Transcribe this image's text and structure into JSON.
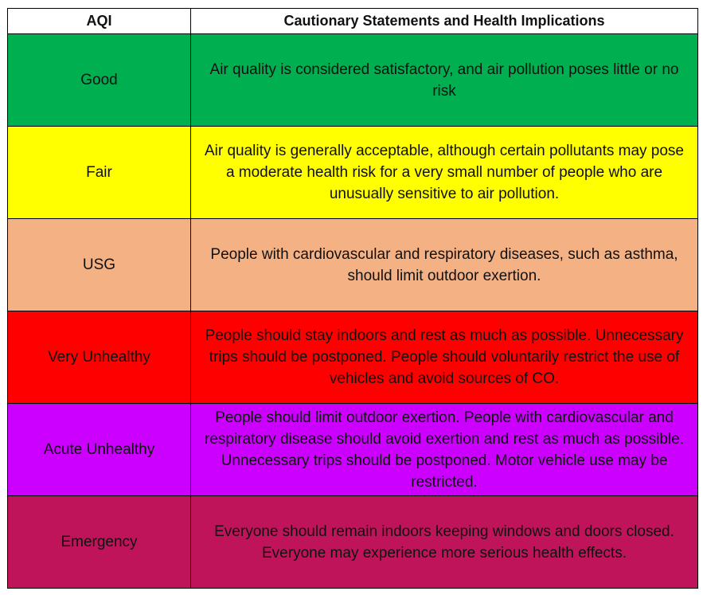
{
  "table": {
    "headers": [
      "AQI",
      "Cautionary Statements and Health Implications"
    ],
    "rows": [
      {
        "level": "Good",
        "statement": "Air quality is considered satisfactory, and air pollution poses little or no risk",
        "color": "#00b050"
      },
      {
        "level": "Fair",
        "statement": "Air quality is generally acceptable, although certain pollutants may pose a moderate health risk for a very small number of people who are unusually sensitive to air pollution.",
        "color": "#ffff00"
      },
      {
        "level": "USG",
        "statement": "People with cardiovascular and respiratory diseases, such as asthma, should limit outdoor exertion.",
        "color": "#f4b183"
      },
      {
        "level": "Very Unhealthy",
        "statement": "People should stay indoors and rest as much as possible. Unnecessary trips should be postponed. People should voluntarily restrict the use of vehicles and avoid sources of CO.",
        "color": "#ff0000"
      },
      {
        "level": "Acute Unhealthy",
        "statement": "People should limit outdoor exertion. People with cardiovascular and respiratory disease should avoid exertion and rest as much as possible. Unnecessary trips should be postponed. Motor vehicle use may be restricted.",
        "color": "#cc00ff"
      },
      {
        "level": "Emergency",
        "statement": "Everyone should remain indoors keeping windows and doors closed. Everyone may experience more serious health effects.",
        "color": "#c0145a"
      }
    ]
  }
}
